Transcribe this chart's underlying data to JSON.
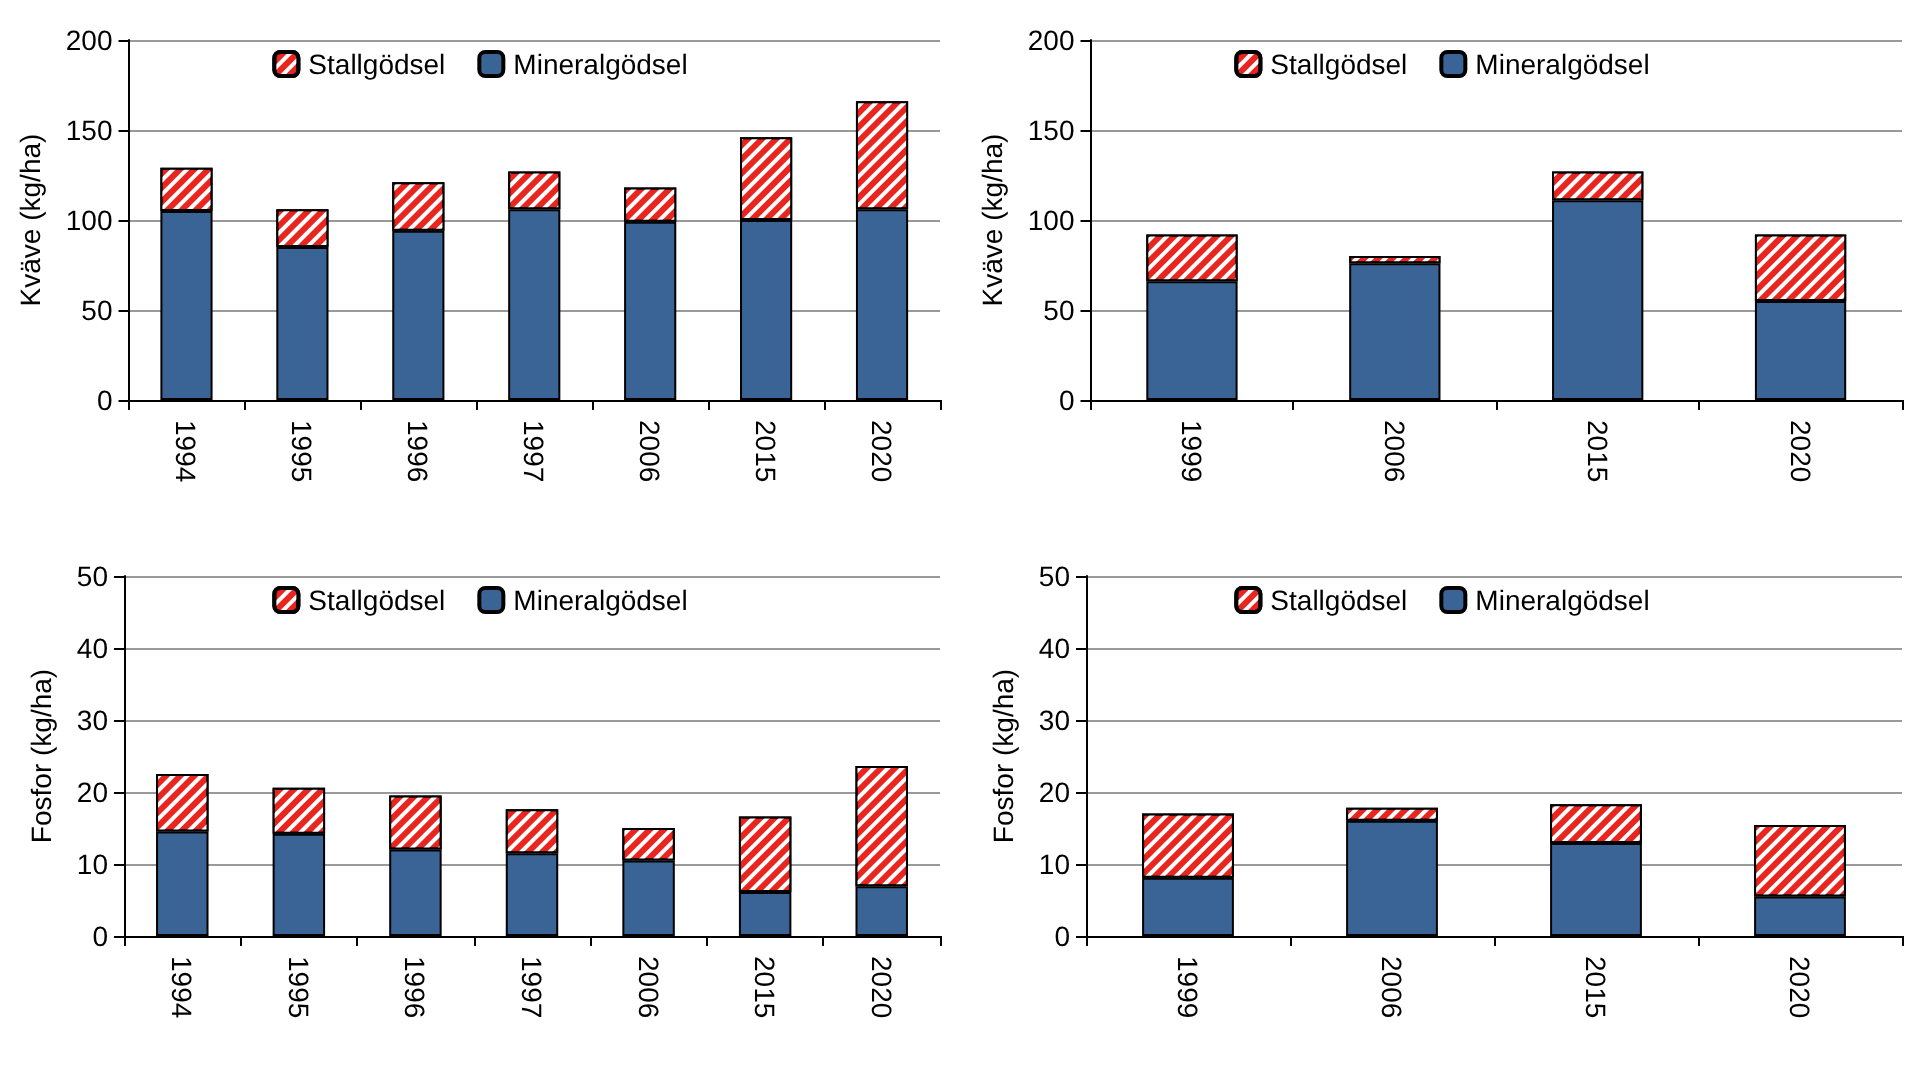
{
  "chart_data": [
    {
      "type": "bar",
      "stacked": true,
      "ylabel": "Kväve (kg/ha)",
      "categories": [
        "1994",
        "1995",
        "1996",
        "1997",
        "2006",
        "2015",
        "2020"
      ],
      "ylim": [
        0,
        200
      ],
      "yticks": [
        0,
        50,
        100,
        150,
        200
      ],
      "grid": "y",
      "legend": "top",
      "series": [
        {
          "name": "Mineralgödsel",
          "color": "#3a6496",
          "values": [
            105,
            85,
            94,
            106,
            99,
            100,
            106
          ]
        },
        {
          "name": "Stallgödsel",
          "color": "#e8261f",
          "values": [
            24,
            21,
            27,
            21,
            19,
            46,
            60
          ]
        }
      ]
    },
    {
      "type": "bar",
      "stacked": true,
      "ylabel": "Kväve (kg/ha)",
      "categories": [
        "1999",
        "2006",
        "2015",
        "2020"
      ],
      "ylim": [
        0,
        200
      ],
      "yticks": [
        0,
        50,
        100,
        150,
        200
      ],
      "grid": "y",
      "legend": "top",
      "series": [
        {
          "name": "Mineralgödsel",
          "color": "#3a6496",
          "values": [
            66,
            76,
            111,
            55
          ]
        },
        {
          "name": "Stallgödsel",
          "color": "#e8261f",
          "values": [
            26,
            4,
            16,
            37
          ]
        }
      ]
    },
    {
      "type": "bar",
      "stacked": true,
      "ylabel": "Fosfor (kg/ha)",
      "categories": [
        "1994",
        "1995",
        "1996",
        "1997",
        "2006",
        "2015",
        "2020"
      ],
      "ylim": [
        0,
        50
      ],
      "yticks": [
        0,
        10,
        20,
        30,
        40,
        50
      ],
      "grid": "y",
      "legend": "top",
      "series": [
        {
          "name": "Mineralgödsel",
          "color": "#3a6496",
          "values": [
            14.5,
            14.2,
            12,
            11.5,
            10.5,
            6.1,
            6.9
          ]
        },
        {
          "name": "Stallgödsel",
          "color": "#e8261f",
          "values": [
            8,
            6.4,
            7.5,
            6.1,
            4.5,
            10.5,
            16.7
          ]
        }
      ]
    },
    {
      "type": "bar",
      "stacked": true,
      "ylabel": "Fosfor (kg/ha)",
      "categories": [
        "1999",
        "2006",
        "2015",
        "2020"
      ],
      "ylim": [
        0,
        50
      ],
      "yticks": [
        0,
        10,
        20,
        30,
        40,
        50
      ],
      "grid": "y",
      "legend": "top",
      "series": [
        {
          "name": "Mineralgödsel",
          "color": "#3a6496",
          "values": [
            8.1,
            16,
            12.9,
            5.5
          ]
        },
        {
          "name": "Stallgödsel",
          "color": "#e8261f",
          "values": [
            8.9,
            1.8,
            5.4,
            9.9
          ]
        }
      ]
    }
  ]
}
